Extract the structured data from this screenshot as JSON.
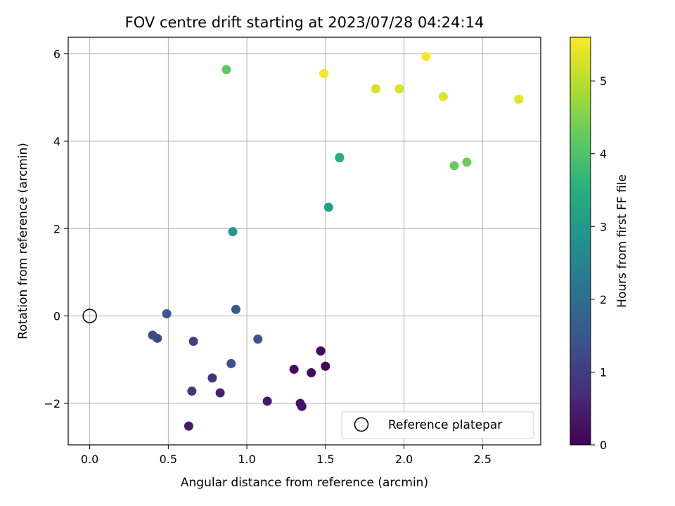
{
  "chart_data": {
    "type": "scatter",
    "title": "FOV centre drift starting at 2023/07/28 04:24:14",
    "xlabel": "Angular distance from reference (arcmin)",
    "ylabel": "Rotation from reference (arcmin)",
    "xlim": [
      -0.137,
      2.87
    ],
    "ylim": [
      -2.95,
      6.38
    ],
    "xticks": [
      0.0,
      0.5,
      1.0,
      1.5,
      2.0,
      2.5
    ],
    "xtick_labels": [
      "0.0",
      "0.5",
      "1.0",
      "1.5",
      "2.0",
      "2.5"
    ],
    "yticks": [
      -2,
      0,
      2,
      4,
      6
    ],
    "ytick_labels": [
      "−2",
      "0",
      "2",
      "4",
      "6"
    ],
    "grid": true,
    "colormap": "viridis",
    "colorbar": {
      "label": "Hours from first FF file",
      "range": [
        0,
        5.6
      ],
      "ticks": [
        0,
        1,
        2,
        3,
        4,
        5
      ],
      "tick_labels": [
        "0",
        "1",
        "2",
        "3",
        "4",
        "5"
      ]
    },
    "legend": {
      "position": "lower right",
      "entries": [
        {
          "label": "Reference platepar",
          "marker": "open-circle"
        }
      ]
    },
    "reference_point": {
      "x": 0.0,
      "y": 0.0
    },
    "points": [
      {
        "x": 1.5,
        "y": -1.15,
        "t": 0.05
      },
      {
        "x": 1.47,
        "y": -0.8,
        "t": 0.1
      },
      {
        "x": 1.41,
        "y": -1.3,
        "t": 0.15
      },
      {
        "x": 1.3,
        "y": -1.22,
        "t": 0.2
      },
      {
        "x": 1.35,
        "y": -2.07,
        "t": 0.25
      },
      {
        "x": 1.34,
        "y": -2.0,
        "t": 0.3
      },
      {
        "x": 1.13,
        "y": -1.95,
        "t": 0.35
      },
      {
        "x": 0.63,
        "y": -2.52,
        "t": 0.4
      },
      {
        "x": 0.83,
        "y": -1.76,
        "t": 0.55
      },
      {
        "x": 0.78,
        "y": -1.42,
        "t": 0.8
      },
      {
        "x": 0.65,
        "y": -1.72,
        "t": 0.95
      },
      {
        "x": 0.66,
        "y": -0.58,
        "t": 1.05
      },
      {
        "x": 0.43,
        "y": -0.51,
        "t": 1.2
      },
      {
        "x": 0.4,
        "y": -0.44,
        "t": 1.3
      },
      {
        "x": 0.9,
        "y": -1.09,
        "t": 1.4
      },
      {
        "x": 1.07,
        "y": -0.53,
        "t": 1.5
      },
      {
        "x": 0.49,
        "y": 0.05,
        "t": 1.55
      },
      {
        "x": 0.93,
        "y": 0.15,
        "t": 1.6
      },
      {
        "x": 0.91,
        "y": 1.93,
        "t": 3.0
      },
      {
        "x": 1.52,
        "y": 2.49,
        "t": 3.15
      },
      {
        "x": 1.59,
        "y": 3.63,
        "t": 3.45
      },
      {
        "x": 1.59,
        "y": 3.62,
        "t": 3.5
      },
      {
        "x": 0.87,
        "y": 5.64,
        "t": 4.25
      },
      {
        "x": 2.32,
        "y": 3.44,
        "t": 4.3
      },
      {
        "x": 2.4,
        "y": 3.52,
        "t": 4.35
      },
      {
        "x": 1.49,
        "y": 5.55,
        "t": 5.55
      },
      {
        "x": 1.82,
        "y": 5.2,
        "t": 5.25
      },
      {
        "x": 1.97,
        "y": 5.2,
        "t": 5.3
      },
      {
        "x": 2.14,
        "y": 5.94,
        "t": 5.6
      },
      {
        "x": 2.25,
        "y": 5.02,
        "t": 5.35
      },
      {
        "x": 2.73,
        "y": 4.96,
        "t": 5.4
      }
    ]
  }
}
